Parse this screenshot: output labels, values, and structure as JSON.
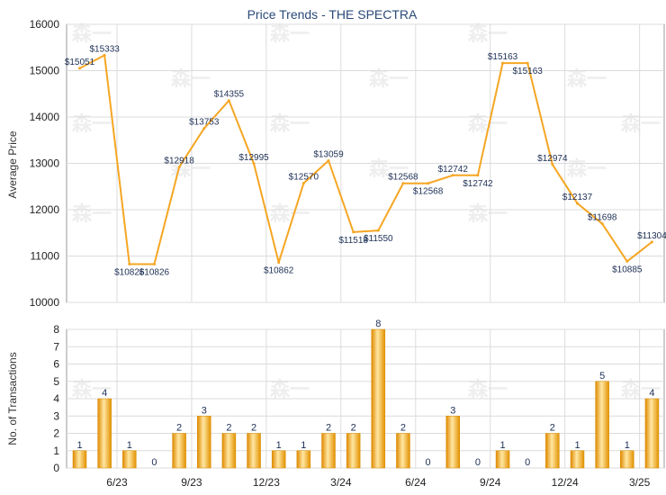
{
  "chart_data": [
    {
      "type": "line",
      "title": "Price Trends - THE SPECTRA",
      "ylabel": "Average Price",
      "ylim": [
        10000,
        16000
      ],
      "yticks": [
        10000,
        11000,
        12000,
        13000,
        14000,
        15000,
        16000
      ],
      "values": [
        15051,
        15333,
        10826,
        10826,
        12918,
        13753,
        14355,
        12995,
        10862,
        12570,
        13059,
        11518,
        11550,
        12568,
        12568,
        12742,
        12742,
        15163,
        15163,
        12974,
        12137,
        11698,
        10885,
        11304
      ],
      "labels": [
        "$15051",
        "$15333",
        "$10826",
        "$10826",
        "$12918",
        "$13753",
        "$14355",
        "$12995",
        "$10862",
        "$12570",
        "$13059",
        "$11518",
        "$11550",
        "$12568",
        "$12568",
        "$12742",
        "$12742",
        "$15163",
        "$15163",
        "$12974",
        "$12137",
        "$11698",
        "$10885",
        "$11304"
      ],
      "color": "#f5a623",
      "grid": true
    },
    {
      "type": "bar",
      "ylabel": "No. of Transactions",
      "ylim": [
        0,
        8
      ],
      "yticks": [
        0,
        1,
        2,
        3,
        4,
        5,
        6,
        7,
        8
      ],
      "values": [
        1,
        4,
        1,
        0,
        2,
        3,
        2,
        2,
        1,
        1,
        2,
        2,
        8,
        2,
        0,
        3,
        0,
        1,
        0,
        2,
        1,
        5,
        1,
        4
      ],
      "xticks": [
        "6/23",
        "9/23",
        "12/23",
        "3/24",
        "6/24",
        "9/24",
        "12/24",
        "3/25"
      ],
      "color": "#f5a623",
      "grid": true
    }
  ],
  "watermark": "森一"
}
